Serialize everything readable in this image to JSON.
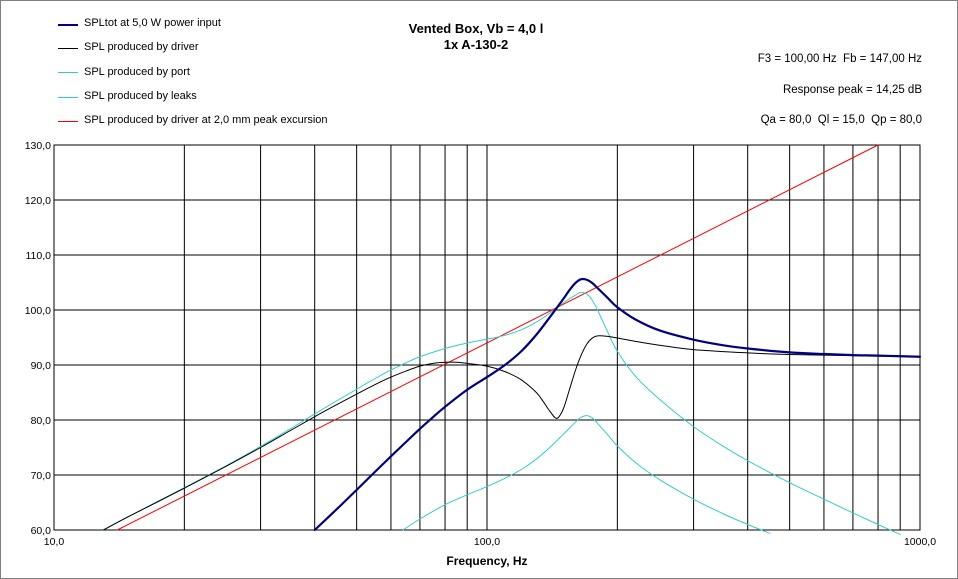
{
  "header": {
    "title_line1": "Vented Box, Vb = 4,0 l",
    "title_line2": "1x A-130-2",
    "info_line1": "F3 = 100,00 Hz  Fb = 147,00 Hz",
    "info_line2": "Response peak = 14,25 dB",
    "info_line3": "Qa = 80,0  Ql = 15,0  Qp = 80,0"
  },
  "chart_data": {
    "type": "line",
    "xlabel": "Frequency, Hz",
    "ylabel": "",
    "x_scale": "log",
    "xlim": [
      10,
      1000
    ],
    "ylim": [
      60,
      130
    ],
    "grid": true,
    "legend_position": "top-left",
    "x_tick_labels": [
      "10,0",
      "100,0",
      "1000,0"
    ],
    "y_ticks": [
      60,
      70,
      80,
      90,
      100,
      110,
      120,
      130
    ],
    "y_tick_labels": [
      "60,0",
      "70,0",
      "80,0",
      "90,0",
      "100,0",
      "110,0",
      "120,0",
      "130,0"
    ],
    "series": [
      {
        "name": "SPLtot at 5,0 W power input",
        "color": "#000080",
        "width": 2.2,
        "points": [
          [
            40,
            60
          ],
          [
            45,
            63.8
          ],
          [
            50,
            67.3
          ],
          [
            55,
            70.5
          ],
          [
            60,
            73.4
          ],
          [
            65,
            76
          ],
          [
            70,
            78.4
          ],
          [
            75,
            80.5
          ],
          [
            80,
            82.4
          ],
          [
            90,
            85.5
          ],
          [
            100,
            87.8
          ],
          [
            110,
            90
          ],
          [
            120,
            92.5
          ],
          [
            130,
            95.5
          ],
          [
            140,
            98.8
          ],
          [
            150,
            102
          ],
          [
            155,
            103.6
          ],
          [
            160,
            104.9
          ],
          [
            165,
            105.6
          ],
          [
            170,
            105.5
          ],
          [
            175,
            104.9
          ],
          [
            180,
            104
          ],
          [
            190,
            102.2
          ],
          [
            200,
            100.5
          ],
          [
            220,
            98.3
          ],
          [
            250,
            96.3
          ],
          [
            300,
            94.6
          ],
          [
            350,
            93.6
          ],
          [
            400,
            93
          ],
          [
            500,
            92.3
          ],
          [
            600,
            92
          ],
          [
            700,
            91.8
          ],
          [
            800,
            91.7
          ],
          [
            1000,
            91.5
          ]
        ]
      },
      {
        "name": "SPL produced by driver",
        "color": "#000000",
        "width": 1,
        "points": [
          [
            13,
            60
          ],
          [
            15,
            62.6
          ],
          [
            20,
            67.6
          ],
          [
            25,
            71.6
          ],
          [
            30,
            75
          ],
          [
            35,
            78
          ],
          [
            40,
            80.6
          ],
          [
            45,
            82.8
          ],
          [
            50,
            84.7
          ],
          [
            55,
            86.4
          ],
          [
            60,
            87.8
          ],
          [
            65,
            88.9
          ],
          [
            70,
            89.8
          ],
          [
            75,
            90.3
          ],
          [
            80,
            90.5
          ],
          [
            85,
            90.5
          ],
          [
            90,
            90.3
          ],
          [
            100,
            89.8
          ],
          [
            110,
            88.8
          ],
          [
            120,
            87.3
          ],
          [
            130,
            85
          ],
          [
            135,
            83.3
          ],
          [
            140,
            81.5
          ],
          [
            145,
            80.3
          ],
          [
            150,
            82
          ],
          [
            155,
            85.5
          ],
          [
            160,
            89
          ],
          [
            165,
            91.8
          ],
          [
            170,
            93.8
          ],
          [
            175,
            94.9
          ],
          [
            180,
            95.3
          ],
          [
            190,
            95.2
          ],
          [
            200,
            94.9
          ],
          [
            220,
            94.3
          ],
          [
            250,
            93.6
          ],
          [
            300,
            92.8
          ],
          [
            400,
            92.2
          ],
          [
            500,
            91.9
          ],
          [
            700,
            91.7
          ],
          [
            1000,
            91.5
          ]
        ]
      },
      {
        "name": "SPL produced by port",
        "color": "#33CCCC",
        "width": 1,
        "points": [
          [
            13,
            60
          ],
          [
            15,
            62.6
          ],
          [
            20,
            67.7
          ],
          [
            25,
            71.7
          ],
          [
            30,
            75.2
          ],
          [
            35,
            78.3
          ],
          [
            40,
            81.1
          ],
          [
            45,
            83.5
          ],
          [
            50,
            85.6
          ],
          [
            55,
            87.5
          ],
          [
            60,
            89.1
          ],
          [
            65,
            90.4
          ],
          [
            70,
            91.5
          ],
          [
            80,
            93
          ],
          [
            90,
            94
          ],
          [
            100,
            94.7
          ],
          [
            110,
            95.4
          ],
          [
            120,
            96.4
          ],
          [
            130,
            97.8
          ],
          [
            140,
            99.5
          ],
          [
            150,
            101.3
          ],
          [
            160,
            102.7
          ],
          [
            165,
            103.2
          ],
          [
            170,
            102.9
          ],
          [
            175,
            101.8
          ],
          [
            180,
            100
          ],
          [
            190,
            96
          ],
          [
            200,
            92.5
          ],
          [
            220,
            88
          ],
          [
            250,
            83.8
          ],
          [
            300,
            78.8
          ],
          [
            350,
            75.3
          ],
          [
            400,
            72.6
          ],
          [
            500,
            68.6
          ],
          [
            600,
            65.6
          ],
          [
            700,
            63.1
          ],
          [
            800,
            61
          ],
          [
            900,
            59.2
          ]
        ]
      },
      {
        "name": "SPL produced by leaks",
        "color": "#33CCCC",
        "width": 1,
        "points": [
          [
            64,
            60
          ],
          [
            70,
            62
          ],
          [
            80,
            64.6
          ],
          [
            90,
            66.4
          ],
          [
            100,
            67.9
          ],
          [
            110,
            69.4
          ],
          [
            120,
            71
          ],
          [
            130,
            72.9
          ],
          [
            140,
            75.1
          ],
          [
            150,
            77.4
          ],
          [
            160,
            79.6
          ],
          [
            165,
            80.5
          ],
          [
            170,
            80.8
          ],
          [
            175,
            80.4
          ],
          [
            180,
            79.4
          ],
          [
            190,
            77.3
          ],
          [
            200,
            75.3
          ],
          [
            220,
            72.3
          ],
          [
            250,
            69.2
          ],
          [
            300,
            65.6
          ],
          [
            350,
            63
          ],
          [
            400,
            61
          ],
          [
            450,
            59.4
          ]
        ]
      },
      {
        "name": "SPL produced by driver at 2,0 mm peak excursion",
        "color": "#FF0000",
        "width": 1,
        "points": [
          [
            14,
            60
          ],
          [
            800,
            130
          ]
        ]
      }
    ]
  }
}
